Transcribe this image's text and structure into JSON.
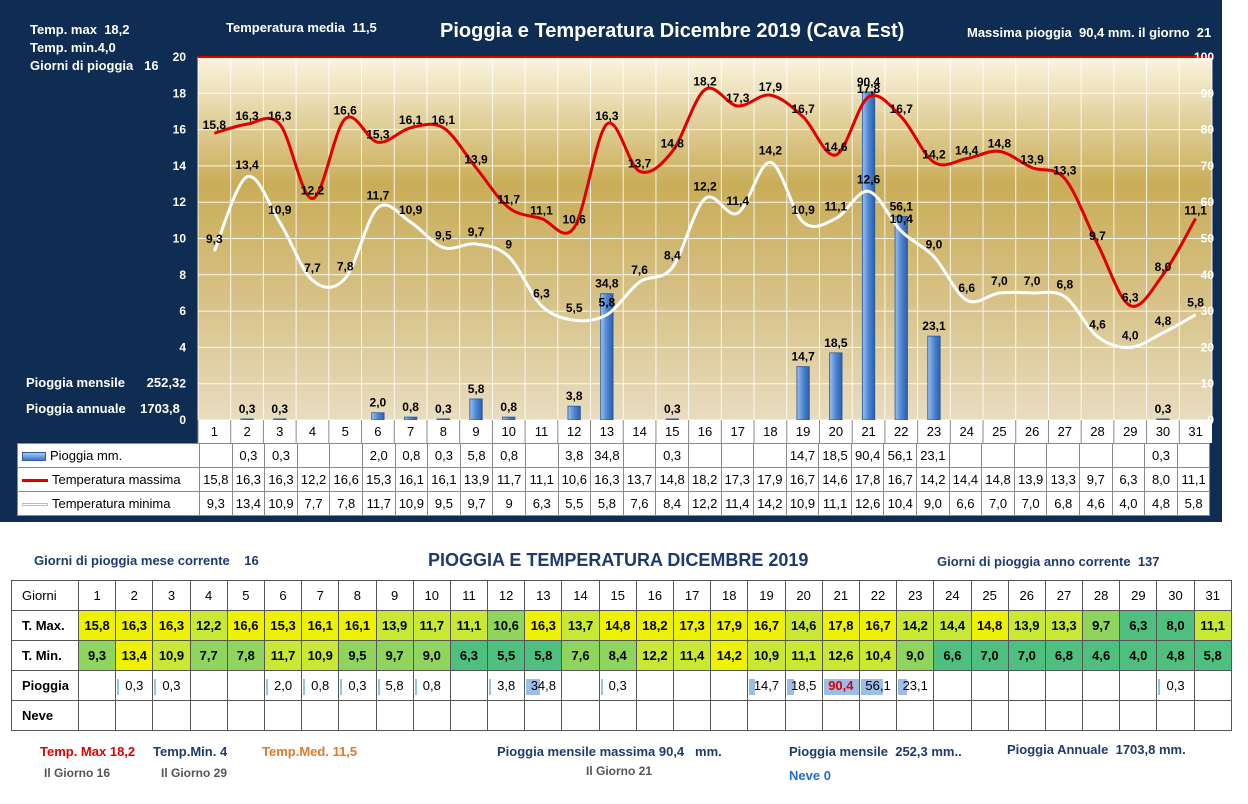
{
  "header": {
    "temp_max_label": "Temp. max",
    "temp_max_value": "18,2",
    "temp_min_label": "Temp.  min.",
    "temp_min_value": "4,0",
    "rain_days_label": "Giorni  di pioggia",
    "rain_days_value": "16",
    "temp_media_label": "Temperatura media",
    "temp_media_value": "11,5",
    "title": "Pioggia e Temperatura Dicembre 2019 (Cava Est)",
    "max_rain_label": "Massima pioggia",
    "max_rain_value": "90,4 mm. il giorno",
    "max_rain_day": "21",
    "monthly_rain_label": "Pioggia mensile",
    "monthly_rain_value": "252,3",
    "annual_rain_label": "Pioggia annuale",
    "annual_rain_value": "1703,8"
  },
  "chart_data": {
    "type": "bar",
    "title": "Pioggia e Temperatura Dicembre 2019 (Cava Est)",
    "categories": [
      "1",
      "2",
      "3",
      "4",
      "5",
      "6",
      "7",
      "8",
      "9",
      "10",
      "11",
      "12",
      "13",
      "14",
      "15",
      "16",
      "17",
      "18",
      "19",
      "20",
      "21",
      "22",
      "23",
      "24",
      "25",
      "26",
      "27",
      "28",
      "29",
      "30",
      "31"
    ],
    "y_left_ticks": [
      "0",
      "2",
      "4",
      "6",
      "8",
      "10",
      "12",
      "14",
      "16",
      "18",
      "20"
    ],
    "y_right_ticks": [
      "0",
      "10",
      "20",
      "30",
      "40",
      "50",
      "60",
      "70",
      "80",
      "90",
      "100"
    ],
    "ylim_left": [
      0,
      20
    ],
    "ylim_right": [
      0,
      100
    ],
    "series": [
      {
        "name": "Pioggia mm.",
        "kind": "bar",
        "axis": "right",
        "color": "#3f78c9",
        "values": [
          null,
          0.3,
          0.3,
          null,
          null,
          2.0,
          0.8,
          0.3,
          5.8,
          0.8,
          null,
          3.8,
          34.8,
          null,
          0.3,
          null,
          null,
          null,
          14.7,
          18.5,
          90.4,
          56.1,
          23.1,
          null,
          null,
          null,
          null,
          null,
          null,
          0.3,
          null
        ],
        "labels": [
          "",
          "0,3",
          "0,3",
          "",
          "",
          "2,0",
          "0,8",
          "0,3",
          "5,8",
          "0,8",
          "",
          "3,8",
          "34,8",
          "",
          "0,3",
          "",
          "",
          "",
          "14,7",
          "18,5",
          "90,4",
          "56,1",
          "23,1",
          "",
          "",
          "",
          "",
          "",
          "",
          "0,3",
          ""
        ]
      },
      {
        "name": "Temperatura massima",
        "kind": "line",
        "axis": "left",
        "color": "#e00000",
        "values": [
          15.8,
          16.3,
          16.3,
          12.2,
          16.6,
          15.3,
          16.1,
          16.1,
          13.9,
          11.7,
          11.1,
          10.6,
          16.3,
          13.7,
          14.8,
          18.2,
          17.3,
          17.9,
          16.7,
          14.6,
          17.8,
          16.7,
          14.2,
          14.4,
          14.8,
          13.9,
          13.3,
          9.7,
          6.3,
          8.0,
          11.1
        ],
        "labels": [
          "15,8",
          "16,3",
          "16,3",
          "12,2",
          "16,6",
          "15,3",
          "16,1",
          "16,1",
          "13,9",
          "11,7",
          "11,1",
          "10,6",
          "16,3",
          "13,7",
          "14,8",
          "18,2",
          "17,3",
          "17,9",
          "16,7",
          "14,6",
          "17,8",
          "16,7",
          "14,2",
          "14,4",
          "14,8",
          "13,9",
          "13,3",
          "9,7",
          "6,3",
          "8,0",
          "11,1"
        ]
      },
      {
        "name": "Temperatura minima",
        "kind": "line",
        "axis": "left",
        "color": "#ffffff",
        "values": [
          9.3,
          13.4,
          10.9,
          7.7,
          7.8,
          11.7,
          10.9,
          9.5,
          9.7,
          9,
          6.3,
          5.5,
          5.8,
          7.6,
          8.4,
          12.2,
          11.4,
          14.2,
          10.9,
          11.1,
          12.6,
          10.4,
          9.0,
          6.6,
          7.0,
          7.0,
          6.8,
          4.6,
          4.0,
          4.8,
          5.8
        ],
        "labels": [
          "9,3",
          "13,4",
          "10,9",
          "7,7",
          "7,8",
          "11,7",
          "10,9",
          "9,5",
          "9,7",
          "9",
          "6,3",
          "5,5",
          "5,8",
          "7,6",
          "8,4",
          "12,2",
          "11,4",
          "14,2",
          "10,9",
          "11,1",
          "12,6",
          "10,4",
          "9,0",
          "6,6",
          "7,0",
          "7,0",
          "6,8",
          "4,6",
          "4,0",
          "4,8",
          "5,8"
        ]
      }
    ]
  },
  "table": {
    "title": "PIOGGIA E TEMPERATURA DICEMBRE 2019",
    "rain_days_month_label": "Giorni di pioggia mese corrente",
    "rain_days_month_value": "16",
    "rain_days_year_label": "Giorni di pioggia anno corrente",
    "rain_days_year_value": "137",
    "row_labels": {
      "days": "Giorni",
      "tmax": "T. Max.",
      "tmin": "T. Min.",
      "rain": "Pioggia",
      "snow": "Neve"
    },
    "days": [
      "1",
      "2",
      "3",
      "4",
      "5",
      "6",
      "7",
      "8",
      "9",
      "10",
      "11",
      "12",
      "13",
      "14",
      "15",
      "16",
      "17",
      "18",
      "19",
      "20",
      "21",
      "22",
      "23",
      "24",
      "25",
      "26",
      "27",
      "28",
      "29",
      "30",
      "31"
    ],
    "tmax": [
      "15,8",
      "16,3",
      "16,3",
      "12,2",
      "16,6",
      "15,3",
      "16,1",
      "16,1",
      "13,9",
      "11,7",
      "11,1",
      "10,6",
      "16,3",
      "13,7",
      "14,8",
      "18,2",
      "17,3",
      "17,9",
      "16,7",
      "14,6",
      "17,8",
      "16,7",
      "14,2",
      "14,4",
      "14,8",
      "13,9",
      "13,3",
      "9,7",
      "6,3",
      "8,0",
      "11,1"
    ],
    "tmin": [
      "9,3",
      "13,4",
      "10,9",
      "7,7",
      "7,8",
      "11,7",
      "10,9",
      "9,5",
      "9,7",
      "9,0",
      "6,3",
      "5,5",
      "5,8",
      "7,6",
      "8,4",
      "12,2",
      "11,4",
      "14,2",
      "10,9",
      "11,1",
      "12,6",
      "10,4",
      "9,0",
      "6,6",
      "7,0",
      "7,0",
      "6,8",
      "4,6",
      "4,0",
      "4,8",
      "5,8"
    ],
    "rain": [
      "",
      "0,3",
      "0,3",
      "",
      "",
      "2,0",
      "0,8",
      "0,3",
      "5,8",
      "0,8",
      "",
      "3,8",
      "34,8",
      "",
      "0,3",
      "",
      "",
      "",
      "14,7",
      "18,5",
      "90,4",
      "56,1",
      "23,1",
      "",
      "",
      "",
      "",
      "",
      "",
      "0,3",
      ""
    ],
    "rain_values": [
      0,
      0.3,
      0.3,
      0,
      0,
      2.0,
      0.8,
      0.3,
      5.8,
      0.8,
      0,
      3.8,
      34.8,
      0,
      0.3,
      0,
      0,
      0,
      14.7,
      18.5,
      90.4,
      56.1,
      23.1,
      0,
      0,
      0,
      0,
      0,
      0,
      0.3,
      0
    ],
    "snow": [
      "",
      "",
      "",
      "",
      "",
      "",
      "",
      "",
      "",
      "",
      "",
      "",
      "",
      "",
      "",
      "",
      "",
      "",
      "",
      "",
      "",
      "",
      "",
      "",
      "",
      "",
      "",
      "",
      "",
      "",
      ""
    ]
  },
  "footer": {
    "tmax_label": "Temp. Max",
    "tmax_value": "18,2",
    "tmax_day": "Il Giorno  16",
    "tmin_label": "Temp.Min.",
    "tmin_value": "4",
    "tmin_day": "Il Giorno 29",
    "tmed_label": "Temp.Med.",
    "tmed_value": "11,5",
    "max_rain_label": "Pioggia mensile massima",
    "max_rain_value": "90,4",
    "max_rain_unit": "mm.",
    "max_rain_day": "Il Giorno 21",
    "monthly_rain_label": "Pioggia mensile",
    "monthly_rain_value": "252,3 mm..",
    "annual_rain_label": "Pioggia Annuale",
    "annual_rain_value": "1703,8 mm.",
    "snow_label": "Neve",
    "snow_value": "0"
  },
  "colors": {
    "panel": "#0f2d52",
    "tmax_line": "#e00000",
    "tmin_line": "#ffffff",
    "rain_bar": "#3f78c9",
    "cell_yellow": "#eef200",
    "cell_yellowgreen": "#c8e834",
    "cell_green": "#8fd45c",
    "cell_teal": "#4fbf7f"
  }
}
